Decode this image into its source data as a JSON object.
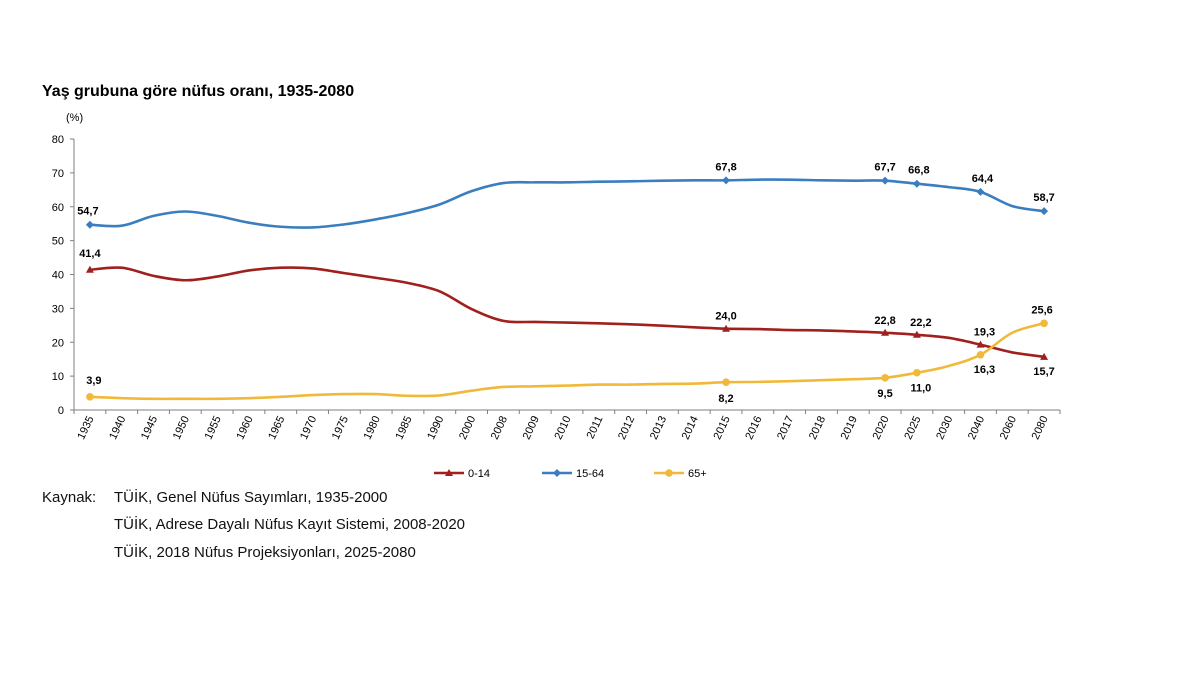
{
  "chart_data": {
    "type": "line",
    "title": "Yaş grubuna göre nüfus oranı, 1935-2080",
    "ylabel": "(%)",
    "xlabel": "",
    "ylim": [
      0,
      80
    ],
    "yticks": [
      0,
      10,
      20,
      30,
      40,
      50,
      60,
      70,
      80
    ],
    "grid": false,
    "legend": "bottom",
    "categories": [
      "1935",
      "1940",
      "1945",
      "1950",
      "1955",
      "1960",
      "1965",
      "1970",
      "1975",
      "1980",
      "1985",
      "1990",
      "2000",
      "2008",
      "2009",
      "2010",
      "2011",
      "2012",
      "2013",
      "2014",
      "2015",
      "2016",
      "2017",
      "2018",
      "2019",
      "2020",
      "2025",
      "2030",
      "2040",
      "2060",
      "2080"
    ],
    "series": [
      {
        "name": "0-14",
        "color": "#a0201e",
        "marker": "triangle",
        "values": [
          41.4,
          42.0,
          39.6,
          38.3,
          39.4,
          41.2,
          42.0,
          41.8,
          40.4,
          39.0,
          37.5,
          35.0,
          29.8,
          26.3,
          26.0,
          25.8,
          25.6,
          25.3,
          24.9,
          24.4,
          24.0,
          23.9,
          23.6,
          23.5,
          23.2,
          22.8,
          22.2,
          21.3,
          19.3,
          17.0,
          15.7
        ],
        "labels": [
          {
            "index": 0,
            "text": "41,4"
          },
          {
            "index": 20,
            "text": "24,0"
          },
          {
            "index": 25,
            "text": "22,8"
          },
          {
            "index": 26,
            "text": "22,2"
          },
          {
            "index": 28,
            "text": "19,3"
          },
          {
            "index": 30,
            "text": "15,7"
          }
        ]
      },
      {
        "name": "15-64",
        "color": "#3a7ebf",
        "marker": "diamond",
        "values": [
          54.7,
          54.4,
          57.3,
          58.6,
          57.3,
          55.3,
          54.1,
          53.9,
          54.8,
          56.3,
          58.2,
          60.7,
          64.6,
          67.0,
          67.2,
          67.2,
          67.4,
          67.5,
          67.7,
          67.8,
          67.8,
          68.0,
          68.0,
          67.8,
          67.7,
          67.7,
          66.8,
          65.8,
          64.4,
          60.2,
          58.7
        ],
        "labels": [
          {
            "index": 0,
            "text": "54,7"
          },
          {
            "index": 20,
            "text": "67,8"
          },
          {
            "index": 25,
            "text": "67,7"
          },
          {
            "index": 26,
            "text": "66,8"
          },
          {
            "index": 28,
            "text": "64,4"
          },
          {
            "index": 30,
            "text": "58,7"
          }
        ]
      },
      {
        "name": "65+",
        "color": "#f0b93a",
        "marker": "circle",
        "values": [
          3.9,
          3.5,
          3.3,
          3.3,
          3.3,
          3.5,
          3.9,
          4.4,
          4.7,
          4.7,
          4.2,
          4.3,
          5.7,
          6.8,
          7.0,
          7.2,
          7.5,
          7.5,
          7.7,
          7.8,
          8.2,
          8.3,
          8.5,
          8.8,
          9.1,
          9.5,
          11.0,
          13.0,
          16.3,
          22.8,
          25.6
        ],
        "labels": [
          {
            "index": 0,
            "text": "3,9"
          },
          {
            "index": 20,
            "text": "8,2"
          },
          {
            "index": 25,
            "text": "9,5"
          },
          {
            "index": 26,
            "text": "11,0"
          },
          {
            "index": 28,
            "text": "16,3"
          },
          {
            "index": 30,
            "text": "25,6"
          }
        ]
      }
    ]
  },
  "source": {
    "prefix": "Kaynak:",
    "lines": [
      "TÜİK, Genel Nüfus Sayımları, 1935-2000",
      "TÜİK, Adrese Dayalı Nüfus Kayıt Sistemi, 2008-2020",
      "TÜİK, 2018 Nüfus Projeksiyonları, 2025-2080"
    ]
  }
}
